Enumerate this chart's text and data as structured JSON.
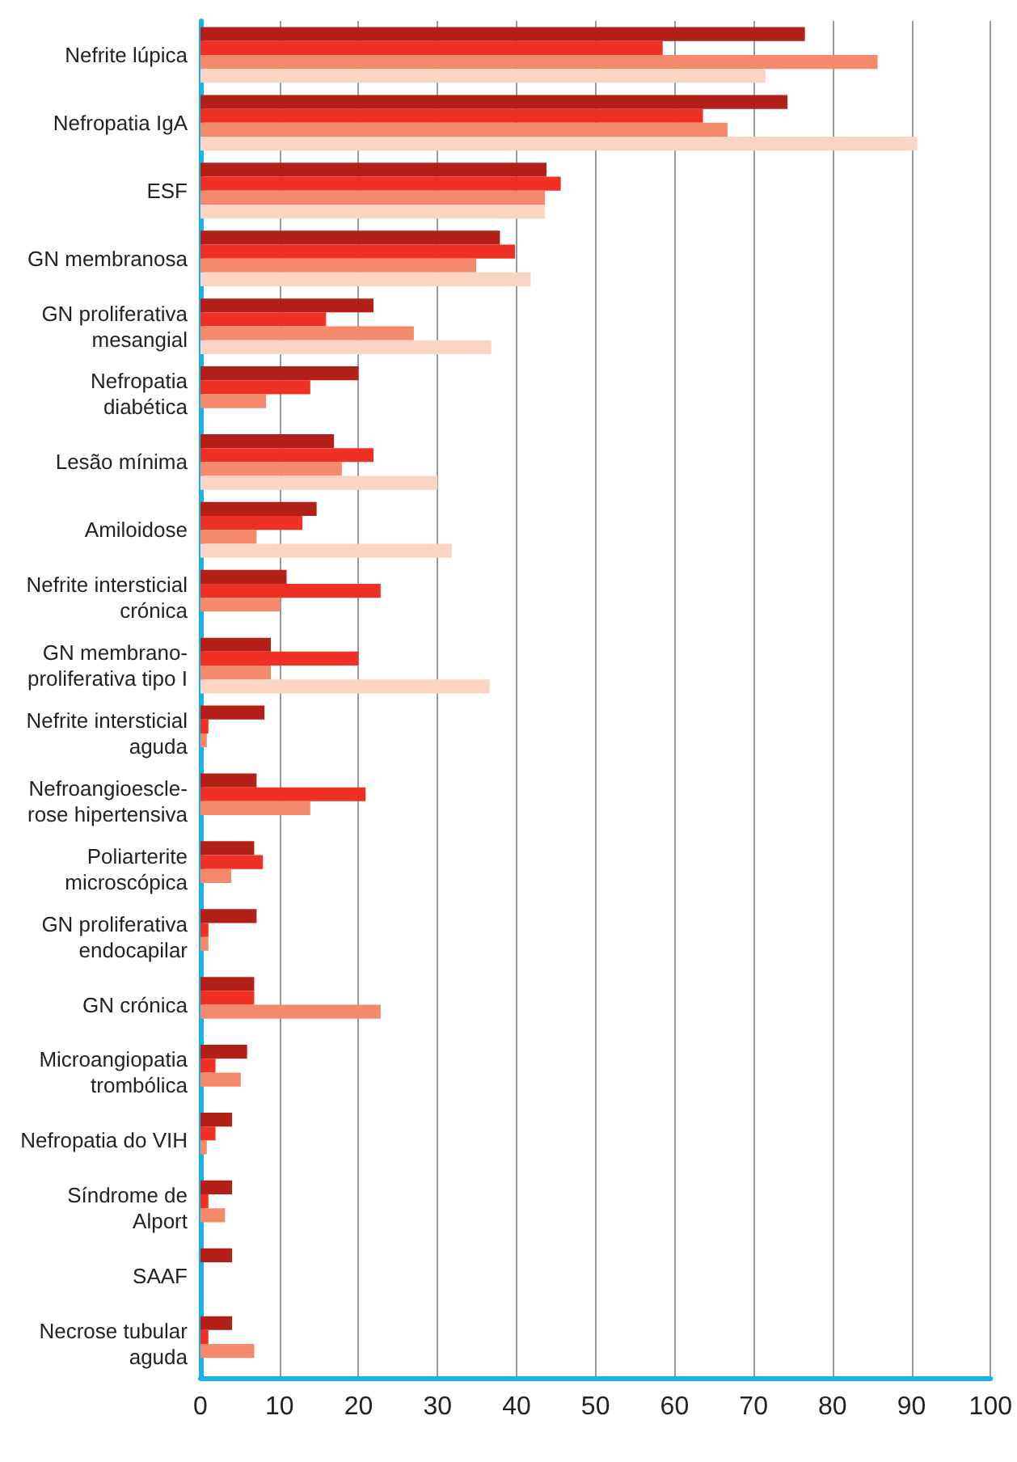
{
  "chart_data": {
    "type": "bar",
    "orientation": "horizontal",
    "categories": [
      "Nefrite lúpica",
      "Nefropatia IgA",
      "ESF",
      "GN membranosa",
      "GN proliferativa\nmesangial",
      "Nefropatia\ndiabética",
      "Lesão mínima",
      "Amiloidose",
      "Nefrite intersticial\ncrónica",
      "GN membrano-\nproliferativa tipo I",
      "Nefrite intersticial\naguda",
      "Nefroangioescle-\nrose hipertensiva",
      "Poliarterite\nmicroscópica",
      "GN proliferativa\nendocapilar",
      "GN crónica",
      "Microangiopatia\ntrombólica",
      "Nefropatia do VIH",
      "Síndrome de\nAlport",
      "SAAF",
      "Necrose tubular\naguda"
    ],
    "series": [
      {
        "color": "#b22018",
        "values": [
          76.5,
          74.3,
          43.8,
          37.9,
          21.9,
          20,
          16.9,
          14.7,
          10.9,
          8.9,
          8.1,
          7.1,
          6.8,
          7.1,
          6.8,
          5.9,
          4,
          4,
          4,
          4
        ]
      },
      {
        "color": "#ee3124",
        "values": [
          58.5,
          63.6,
          45.6,
          39.8,
          15.9,
          13.9,
          21.9,
          12.9,
          22.8,
          20,
          1,
          20.9,
          7.9,
          1,
          6.8,
          1.9,
          1.9,
          1,
          null,
          1
        ]
      },
      {
        "color": "#f4896b",
        "values": [
          85.7,
          66.7,
          43.6,
          34.9,
          27,
          8.3,
          17.9,
          7.1,
          10.1,
          8.9,
          0.8,
          13.9,
          3.9,
          1,
          22.8,
          5.1,
          0.8,
          3.1,
          null,
          6.8
        ]
      },
      {
        "color": "#fbd4c4",
        "values": [
          71.5,
          90.7,
          43.6,
          41.8,
          36.8,
          null,
          30,
          31.8,
          null,
          36.6,
          null,
          null,
          null,
          null,
          null,
          null,
          null,
          null,
          null,
          null
        ]
      }
    ],
    "xlim": [
      0,
      100
    ],
    "xticks": [
      0,
      10,
      20,
      30,
      40,
      50,
      60,
      70,
      80,
      90,
      100
    ],
    "grid": "x"
  }
}
